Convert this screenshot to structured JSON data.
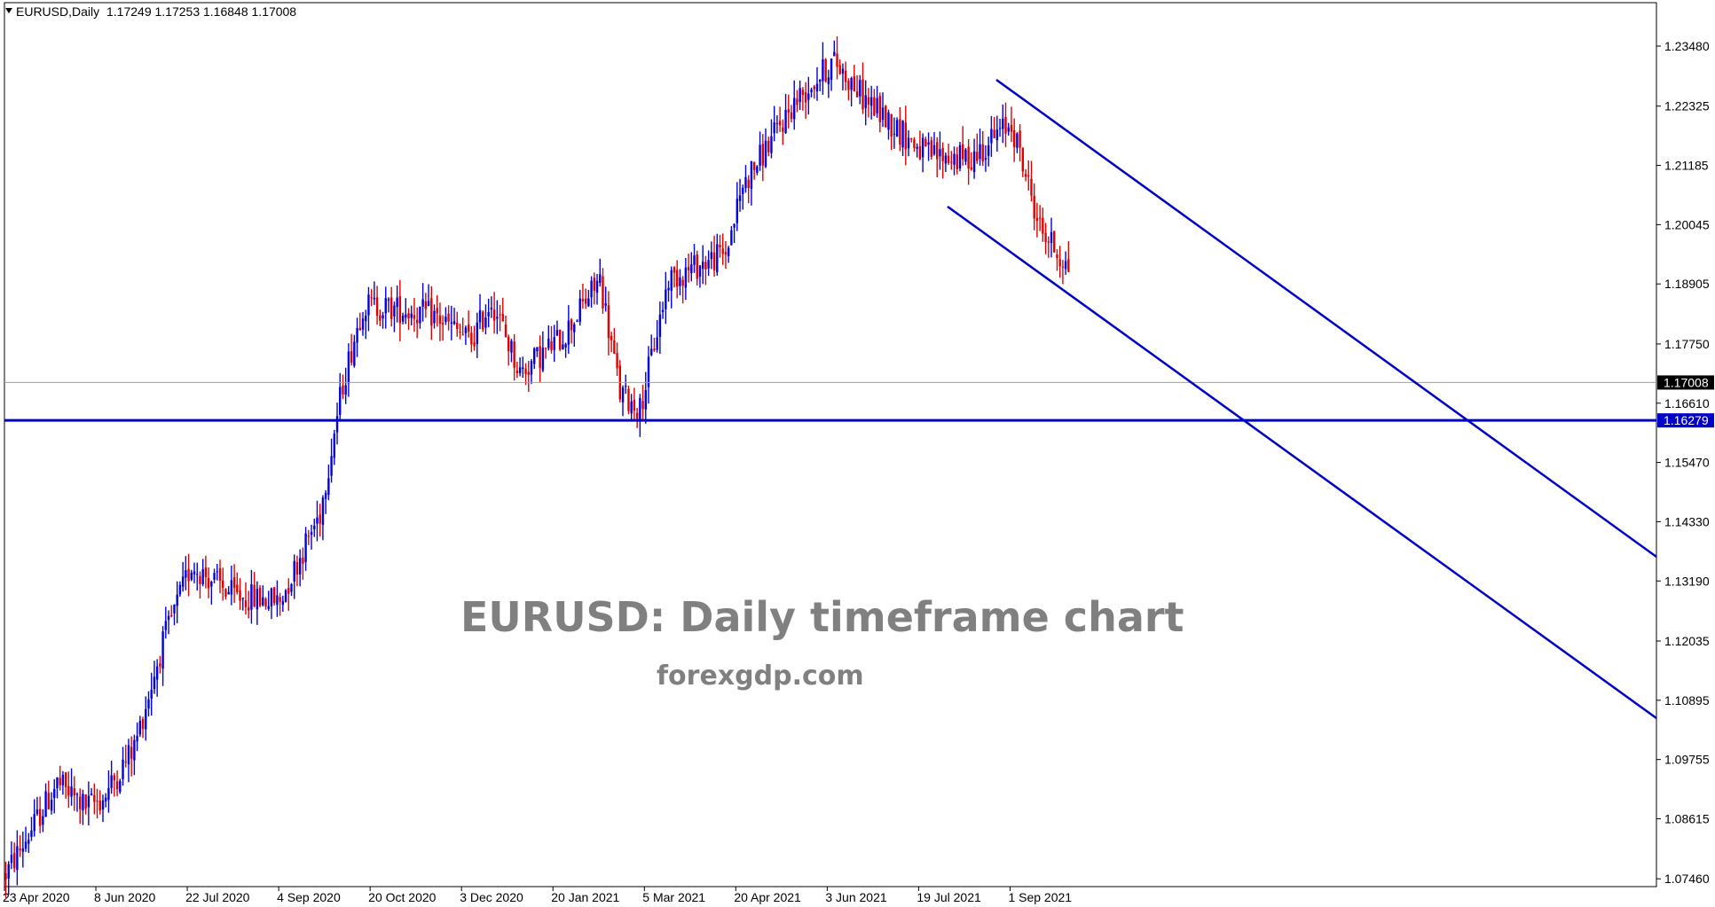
{
  "header": {
    "symbol": "EURUSD,Daily",
    "ohlc": "1.17249 1.17253 1.16848 1.17008"
  },
  "watermark": {
    "title": "EURUSD: Daily timeframe chart",
    "subtitle": "forexgdp.com"
  },
  "colors": {
    "bull": "#0000e0",
    "bear": "#e00000",
    "trendline": "#0000c8",
    "current_line": "#9aa39a",
    "frame": "#000000"
  },
  "chart_data": {
    "type": "candlestick",
    "title": "",
    "xlabel": "",
    "ylabel": "",
    "ylim": [
      1.0676,
      1.2405
    ],
    "y_ticks": [
      "1.23480",
      "1.22325",
      "1.21185",
      "1.20045",
      "1.18905",
      "1.17750",
      "1.16610",
      "1.15470",
      "1.14330",
      "1.13190",
      "1.12035",
      "1.10895",
      "1.09755",
      "1.08615",
      "1.07460"
    ],
    "x_ticks": [
      "23 Apr 2020",
      "8 Jun 2020",
      "22 Jul 2020",
      "4 Sep 2020",
      "20 Oct 2020",
      "3 Dec 2020",
      "20 Jan 2021",
      "5 Mar 2021",
      "20 Apr 2021",
      "3 Jun 2021",
      "19 Jul 2021",
      "1 Sep 2021"
    ],
    "x_range_bars": [
      0,
      390
    ],
    "grid": false,
    "current_price": 1.17008,
    "current_price_label": "1.17008",
    "horizontal_level": 1.16279,
    "horizontal_level_label": "1.16279",
    "price_path": [
      [
        0,
        1.0755
      ],
      [
        10,
        1.085
      ],
      [
        18,
        1.093
      ],
      [
        28,
        1.0885
      ],
      [
        34,
        1.09
      ],
      [
        45,
        1.1
      ],
      [
        55,
        1.12
      ],
      [
        65,
        1.135
      ],
      [
        80,
        1.129
      ],
      [
        96,
        1.128
      ],
      [
        100,
        1.133
      ],
      [
        110,
        1.145
      ],
      [
        118,
        1.17
      ],
      [
        125,
        1.185
      ],
      [
        140,
        1.184
      ],
      [
        150,
        1.183
      ],
      [
        163,
        1.178
      ],
      [
        170,
        1.186
      ],
      [
        180,
        1.172
      ],
      [
        195,
        1.179
      ],
      [
        208,
        1.19
      ],
      [
        215,
        1.168
      ],
      [
        222,
        1.165
      ],
      [
        232,
        1.19
      ],
      [
        252,
        1.195
      ],
      [
        258,
        1.208
      ],
      [
        266,
        1.215
      ],
      [
        276,
        1.224
      ],
      [
        290,
        1.232
      ],
      [
        300,
        1.225
      ],
      [
        310,
        1.22
      ],
      [
        322,
        1.214
      ],
      [
        337,
        1.213
      ],
      [
        352,
        1.22
      ],
      [
        362,
        1.2
      ],
      [
        372,
        1.192
      ],
      [
        380,
        1.19
      ],
      [
        388,
        1.187
      ],
      [
        390,
        1.188
      ]
    ],
    "channel_lines": [
      {
        "from": {
          "x": "2021-05-07",
          "y": 1.2285
        },
        "to": {
          "x": "2021-12-31",
          "y": 1.133
        }
      },
      {
        "from": {
          "x": "2021-04-21",
          "y": 1.205
        },
        "to": {
          "x": "2021-12-31",
          "y": 1.1015
        }
      }
    ]
  }
}
